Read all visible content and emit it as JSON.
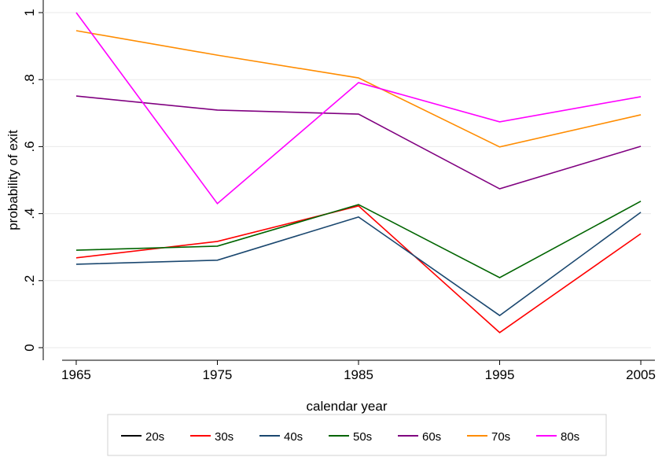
{
  "chart_data": {
    "type": "line",
    "x": [
      1965,
      1975,
      1985,
      1995,
      2005
    ],
    "xlabel": "calendar year",
    "ylabel": "probability of exit",
    "xlim": [
      1964,
      2006
    ],
    "xticks": [
      1965,
      1975,
      1985,
      1995,
      2005
    ],
    "ylim": [
      -0.0376,
      1.0376
    ],
    "yticks": [
      0,
      {
        "value": 0.2,
        "label": ".2"
      },
      {
        "value": 0.4,
        "label": ".4"
      },
      {
        "value": 0.6,
        "label": ".6"
      },
      {
        "value": 0.8,
        "label": ".8"
      },
      1
    ],
    "grid": true,
    "legend": "bottom",
    "series": [
      {
        "name": "20s",
        "color": "#000000",
        "values": [
          null,
          null,
          null,
          null,
          null
        ]
      },
      {
        "name": "30s",
        "color": "#ff0000",
        "values": [
          0.268,
          0.317,
          0.423,
          0.045,
          0.34
        ]
      },
      {
        "name": "40s",
        "color": "#1a476f",
        "values": [
          0.249,
          0.261,
          0.39,
          0.096,
          0.404
        ]
      },
      {
        "name": "50s",
        "color": "#006400",
        "values": [
          0.291,
          0.303,
          0.427,
          0.209,
          0.437
        ]
      },
      {
        "name": "60s",
        "color": "#800080",
        "values": [
          0.751,
          0.709,
          0.697,
          0.474,
          0.601
        ]
      },
      {
        "name": "70s",
        "color": "#ff8c00",
        "values": [
          0.946,
          0.873,
          0.805,
          0.599,
          0.695
        ]
      },
      {
        "name": "80s",
        "color": "#ff00ff",
        "values": [
          1.0,
          0.43,
          0.791,
          0.674,
          0.749
        ]
      }
    ]
  }
}
